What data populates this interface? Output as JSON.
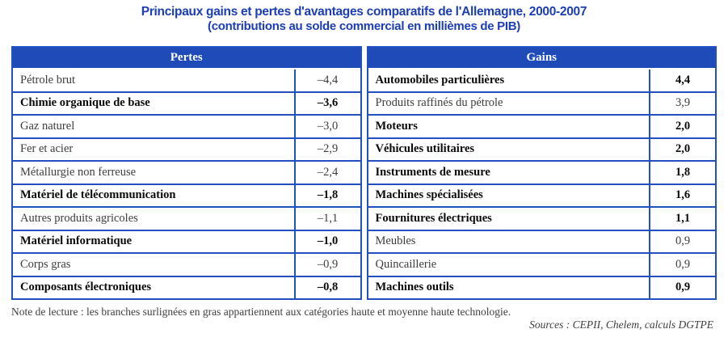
{
  "title": {
    "line1": "Principaux gains et pertes d'avantages comparatifs de l'Allemagne, 2000-2007",
    "line2": "(contributions au solde commercial en millièmes de PIB)"
  },
  "pertes": {
    "header": "Pertes",
    "rows": [
      {
        "label": "Pétrole brut",
        "value": "–4,4",
        "bold": false
      },
      {
        "label": "Chimie organique de base",
        "value": "–3,6",
        "bold": true
      },
      {
        "label": "Gaz naturel",
        "value": "–3,0",
        "bold": false
      },
      {
        "label": "Fer et acier",
        "value": "–2,9",
        "bold": false
      },
      {
        "label": "Métallurgie non ferreuse",
        "value": "–2,4",
        "bold": false
      },
      {
        "label": "Matériel de télécommunication",
        "value": "–1,8",
        "bold": true
      },
      {
        "label": "Autres produits agricoles",
        "value": "–1,1",
        "bold": false
      },
      {
        "label": "Matériel informatique",
        "value": "–1,0",
        "bold": true
      },
      {
        "label": "Corps gras",
        "value": "–0,9",
        "bold": false
      },
      {
        "label": "Composants électroniques",
        "value": "–0,8",
        "bold": true
      }
    ]
  },
  "gains": {
    "header": "Gains",
    "rows": [
      {
        "label": "Automobiles particulières",
        "value": "4,4",
        "bold": true
      },
      {
        "label": "Produits raffinés du pétrole",
        "value": "3,9",
        "bold": false
      },
      {
        "label": "Moteurs",
        "value": "2,0",
        "bold": true
      },
      {
        "label": "Véhicules utilitaires",
        "value": "2,0",
        "bold": true
      },
      {
        "label": "Instruments de mesure",
        "value": "1,8",
        "bold": true
      },
      {
        "label": "Machines spécialisées",
        "value": "1,6",
        "bold": true
      },
      {
        "label": "Fournitures électriques",
        "value": "1,1",
        "bold": true
      },
      {
        "label": "Meubles",
        "value": "0,9",
        "bold": false
      },
      {
        "label": "Quincaillerie",
        "value": "0,9",
        "bold": false
      },
      {
        "label": "Machines outils",
        "value": "0,9",
        "bold": true
      }
    ]
  },
  "note": "Note de lecture : les branches surlignées en gras appartiennent aux catégories haute et moyenne haute technologie.",
  "sources": "Sources : CEPII, Chelem, calculs DGTPE",
  "colors": {
    "header_blue": "#1e4bb8",
    "border_blue": "#2250c0",
    "title_blue": "#1c3eb5"
  }
}
